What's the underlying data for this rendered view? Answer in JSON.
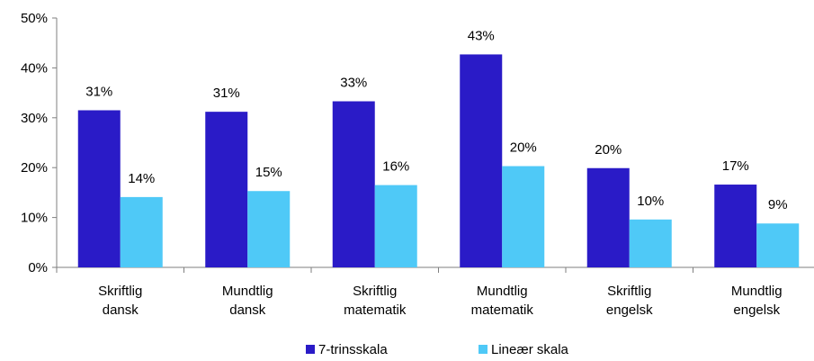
{
  "chart_data": {
    "type": "bar",
    "categories": [
      [
        "Skriftlig",
        "dansk"
      ],
      [
        "Mundtlig",
        "dansk"
      ],
      [
        "Skriftlig",
        "matematik"
      ],
      [
        "Mundtlig",
        "matematik"
      ],
      [
        "Skriftlig",
        "engelsk"
      ],
      [
        "Mundtlig",
        "engelsk"
      ]
    ],
    "series": [
      {
        "name": "7-trinsskala",
        "color": "#2a1bc7",
        "values": [
          31.5,
          31.2,
          33.3,
          42.7,
          19.9,
          16.6
        ],
        "labels": [
          "31%",
          "31%",
          "33%",
          "43%",
          "20%",
          "17%"
        ]
      },
      {
        "name": "Lineær skala",
        "color": "#4fc9f7",
        "values": [
          14.1,
          15.3,
          16.5,
          20.3,
          9.6,
          8.8
        ],
        "labels": [
          "14%",
          "15%",
          "16%",
          "20%",
          "10%",
          "9%"
        ]
      }
    ],
    "yticks": [
      "0%",
      "10%",
      "20%",
      "30%",
      "40%",
      "50%"
    ],
    "ylim": [
      0,
      50
    ],
    "grid": false,
    "legend_position": "bottom"
  }
}
